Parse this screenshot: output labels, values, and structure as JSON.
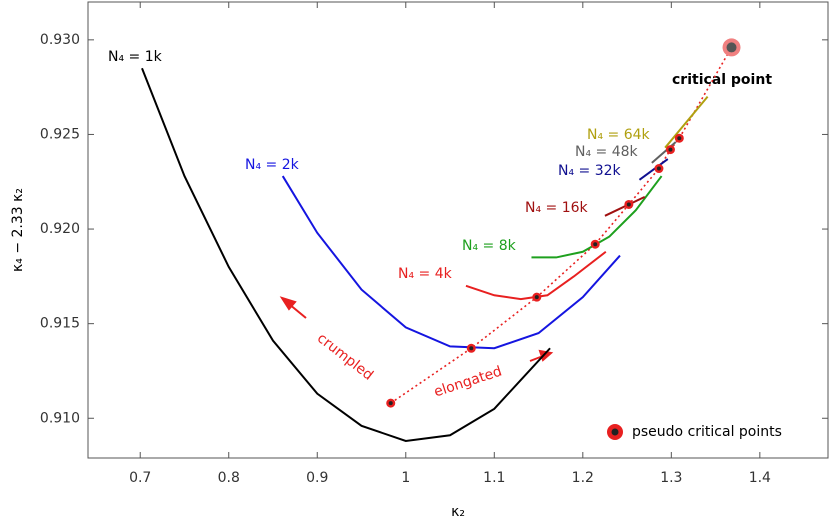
{
  "chart_data": {
    "type": "line",
    "xlabel": "κ₂",
    "ylabel": "κ₄ − 2.33 κ₂",
    "xlim": [
      0.641,
      1.477
    ],
    "ylim": [
      0.9079,
      0.932
    ],
    "xticks": [
      0.7,
      0.8,
      0.9,
      1.0,
      1.1,
      1.2,
      1.3,
      1.4
    ],
    "yticks": [
      {
        "value": 0.91,
        "label": "0.910"
      },
      {
        "value": 0.915,
        "label": "0.915"
      },
      {
        "value": 0.92,
        "label": "0.920"
      },
      {
        "value": 0.925,
        "label": "0.925"
      },
      {
        "value": 0.93,
        "label": "0.930"
      }
    ],
    "series": [
      {
        "name": "N₄ = 1k",
        "color": "#000000",
        "x": [
          0.702,
          0.75,
          0.8,
          0.85,
          0.9,
          0.95,
          1.0,
          1.05,
          1.1,
          1.163
        ],
        "values": [
          0.9285,
          0.9228,
          0.918,
          0.9141,
          0.9113,
          0.9096,
          0.9088,
          0.9091,
          0.9105,
          0.9137
        ]
      },
      {
        "name": "N₄ = 2k",
        "color": "#1515e0",
        "x": [
          0.861,
          0.9,
          0.95,
          1.0,
          1.05,
          1.1,
          1.15,
          1.2,
          1.242
        ],
        "values": [
          0.9228,
          0.9198,
          0.9168,
          0.9148,
          0.9138,
          0.9137,
          0.9145,
          0.9164,
          0.9186
        ]
      },
      {
        "name": "N₄ = 4k",
        "color": "#e82020",
        "x": [
          1.068,
          1.1,
          1.13,
          1.16,
          1.19,
          1.226
        ],
        "values": [
          0.917,
          0.9165,
          0.9163,
          0.9165,
          0.9175,
          0.9188
        ]
      },
      {
        "name": "N₄ = 8k",
        "color": "#1ea01e",
        "x": [
          1.142,
          1.17,
          1.2,
          1.23,
          1.26,
          1.289
        ],
        "values": [
          0.9185,
          0.9185,
          0.9188,
          0.9196,
          0.921,
          0.9228
        ]
      },
      {
        "name": "N₄ = 16k",
        "color": "#a01010",
        "x": [
          1.225,
          1.252,
          1.27
        ],
        "values": [
          0.9207,
          0.9213,
          0.9217
        ]
      },
      {
        "name": "N₄ = 32k",
        "color": "#101090",
        "x": [
          1.264,
          1.296
        ],
        "values": [
          0.9226,
          0.9237
        ]
      },
      {
        "name": "N₄ = 48k",
        "color": "#606060",
        "x": [
          1.278,
          1.305
        ],
        "values": [
          0.9235,
          0.9246
        ]
      },
      {
        "name": "N₄ = 64k",
        "color": "#b0a010",
        "x": [
          1.293,
          1.341
        ],
        "values": [
          0.9243,
          0.927
        ]
      }
    ],
    "pseudo_critical_points": {
      "name": "pseudo critical points",
      "color": "#e82020",
      "x": [
        0.983,
        1.074,
        1.148,
        1.214,
        1.252,
        1.286,
        1.299,
        1.309
      ],
      "values": [
        0.9108,
        0.9137,
        0.9164,
        0.9192,
        0.9213,
        0.9232,
        0.9242,
        0.9248
      ]
    },
    "critical_point": {
      "label": "critical point",
      "color": "#f08080",
      "x": 1.368,
      "value": 0.9296
    },
    "annotations": [
      "crumpled",
      "elongated"
    ]
  }
}
